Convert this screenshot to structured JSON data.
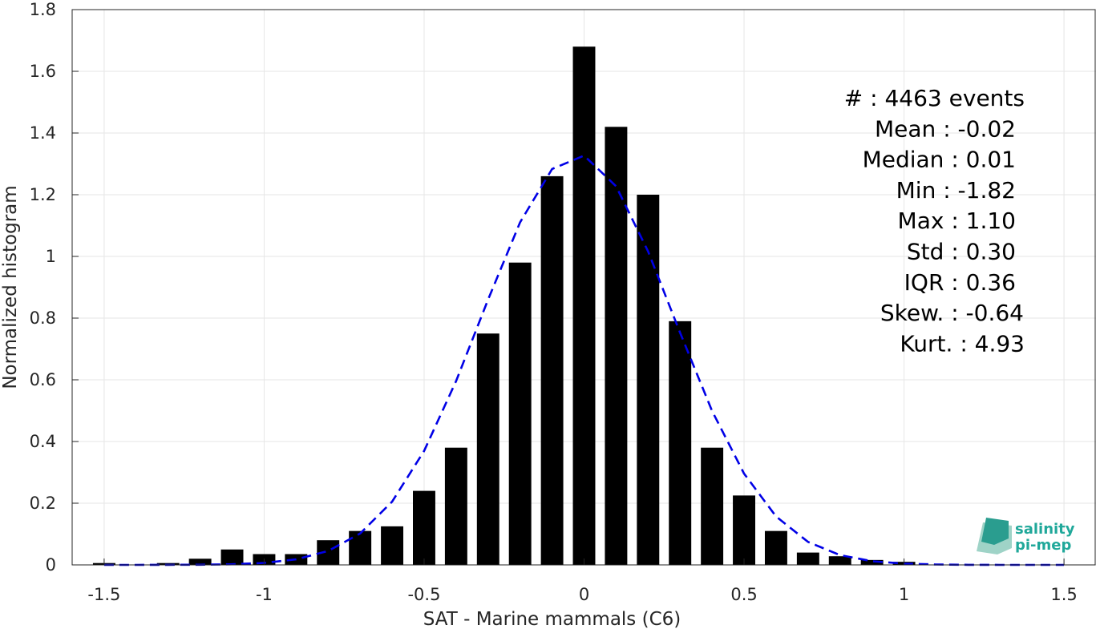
{
  "chart_data": {
    "type": "bar",
    "xlabel": "SAT - Marine mammals (C6)",
    "ylabel": "Normalized histogram",
    "xlim": [
      -1.6,
      1.6
    ],
    "ylim": [
      0,
      1.8
    ],
    "xticks": [
      -1.5,
      -1,
      -0.5,
      0,
      0.5,
      1,
      1.5
    ],
    "xtick_labels": [
      "-1.5",
      "-1",
      "-0.5",
      "0",
      "0.5",
      "1",
      "1.5"
    ],
    "yticks": [
      0,
      0.2,
      0.4,
      0.6,
      0.8,
      1,
      1.2,
      1.4,
      1.6,
      1.8
    ],
    "ytick_labels": [
      "0",
      "0.2",
      "0.4",
      "0.6",
      "0.8",
      "1",
      "1.2",
      "1.4",
      "1.6",
      "1.8"
    ],
    "grid": true,
    "bar_color": "#000000",
    "bar_width": 0.07,
    "bins": [
      {
        "x": -1.5,
        "y": 0.006
      },
      {
        "x": -1.3,
        "y": 0.006
      },
      {
        "x": -1.2,
        "y": 0.02
      },
      {
        "x": -1.1,
        "y": 0.05
      },
      {
        "x": -1.0,
        "y": 0.035
      },
      {
        "x": -0.9,
        "y": 0.035
      },
      {
        "x": -0.8,
        "y": 0.08
      },
      {
        "x": -0.7,
        "y": 0.11
      },
      {
        "x": -0.6,
        "y": 0.125
      },
      {
        "x": -0.5,
        "y": 0.24
      },
      {
        "x": -0.4,
        "y": 0.38
      },
      {
        "x": -0.3,
        "y": 0.75
      },
      {
        "x": -0.2,
        "y": 0.98
      },
      {
        "x": -0.1,
        "y": 1.26
      },
      {
        "x": 0.0,
        "y": 1.68
      },
      {
        "x": 0.1,
        "y": 1.42
      },
      {
        "x": 0.2,
        "y": 1.2
      },
      {
        "x": 0.3,
        "y": 0.79
      },
      {
        "x": 0.4,
        "y": 0.38
      },
      {
        "x": 0.5,
        "y": 0.225
      },
      {
        "x": 0.6,
        "y": 0.11
      },
      {
        "x": 0.7,
        "y": 0.04
      },
      {
        "x": 0.8,
        "y": 0.028
      },
      {
        "x": 0.9,
        "y": 0.016
      },
      {
        "x": 1.0,
        "y": 0.01
      }
    ],
    "fit_curve": {
      "style": "dashed",
      "color": "#0000e6",
      "mean": -0.02,
      "std": 0.3,
      "x_range": [
        -1.5,
        1.5
      ]
    },
    "stats_box": [
      "#  : 4463 events",
      "Mean : -0.02",
      "Median : 0.01",
      "Min : -1.82",
      "Max : 1.10",
      "Std : 0.30",
      "IQR : 0.36",
      "Skew. : -0.64",
      "Kurt. : 4.93"
    ]
  },
  "logo": {
    "line1": "salinity",
    "line2": "pi-mep",
    "color": "#20a89a"
  }
}
